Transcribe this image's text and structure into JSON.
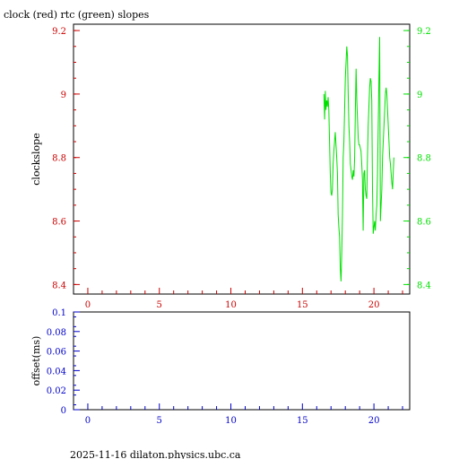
{
  "page": {
    "title": "clock (red) rtc (green) slopes",
    "footer": "2025-11-16 dilaton.physics.ubc.ca"
  },
  "colors": {
    "left_axis": "#cc0000",
    "right_axis": "#00e000",
    "green_series": "#00e000",
    "bottom_axis": "#0000cc",
    "frame": "#000000"
  },
  "chart_data": [
    {
      "type": "line",
      "title": "clock (red) rtc (green) slopes",
      "ylabel": "clockslope",
      "xlabel": "",
      "xlim": [
        -1,
        22.5
      ],
      "ylim": [
        8.37,
        9.22
      ],
      "y2lim": [
        8.37,
        9.22
      ],
      "xticks": [
        0,
        5,
        10,
        15,
        20
      ],
      "xtick_labels": [
        "0",
        "5",
        "10",
        "15",
        "20"
      ],
      "yticks": [
        8.4,
        8.6,
        8.8,
        9,
        9.2
      ],
      "ytick_labels": [
        "8.4",
        "8.6",
        "8.8",
        "9",
        "9.2"
      ],
      "y2ticks": [
        8.4,
        8.6,
        8.8,
        9,
        9.2
      ],
      "y2tick_labels": [
        "8.4",
        "8.6",
        "8.8",
        "9",
        "9.2"
      ],
      "grid": false,
      "series": [
        {
          "color": "#00e000",
          "x": [
            16.5,
            16.55,
            16.6,
            16.65,
            16.7,
            16.75,
            16.8,
            16.85,
            16.9,
            16.95,
            17.0,
            17.05,
            17.1,
            17.15,
            17.2,
            17.3,
            17.4,
            17.45,
            17.5,
            17.55,
            17.6,
            17.65,
            17.7,
            17.75,
            17.8,
            17.85,
            17.9,
            17.95,
            18.0,
            18.05,
            18.1,
            18.15,
            18.2,
            18.25,
            18.3,
            18.35,
            18.4,
            18.45,
            18.5,
            18.55,
            18.6,
            18.65,
            18.7,
            18.75,
            18.8,
            18.85,
            18.9,
            18.95,
            19.0,
            19.05,
            19.1,
            19.15,
            19.2,
            19.25,
            19.3,
            19.35,
            19.4,
            19.45,
            19.5,
            19.55,
            19.6,
            19.65,
            19.7,
            19.75,
            19.8,
            19.85,
            19.9,
            19.95,
            20.0,
            20.05,
            20.1,
            20.15,
            20.2,
            20.25,
            20.3,
            20.35,
            20.4,
            20.45,
            20.5,
            20.55,
            20.6,
            20.65,
            20.7,
            20.75,
            20.8,
            20.85,
            20.9,
            20.95,
            21.0,
            21.05,
            21.1,
            21.15,
            21.2,
            21.25,
            21.3,
            21.35,
            21.4
          ],
          "y": [
            9.0,
            8.92,
            9.01,
            8.95,
            8.98,
            8.96,
            8.99,
            8.95,
            8.85,
            8.75,
            8.69,
            8.68,
            8.7,
            8.78,
            8.82,
            8.88,
            8.8,
            8.75,
            8.62,
            8.58,
            8.55,
            8.45,
            8.41,
            8.5,
            8.62,
            8.8,
            8.85,
            8.95,
            9.05,
            9.1,
            9.15,
            9.12,
            9.0,
            8.9,
            8.85,
            8.78,
            8.76,
            8.74,
            8.73,
            8.76,
            8.74,
            8.8,
            8.95,
            9.08,
            8.98,
            8.92,
            8.86,
            8.84,
            8.84,
            8.83,
            8.82,
            8.78,
            8.73,
            8.57,
            8.75,
            8.76,
            8.7,
            8.68,
            8.67,
            8.8,
            8.9,
            8.96,
            9.02,
            9.05,
            9.04,
            8.98,
            8.7,
            8.56,
            8.58,
            8.6,
            8.57,
            8.62,
            8.65,
            8.75,
            8.9,
            9.05,
            9.18,
            8.6,
            8.65,
            8.7,
            8.8,
            8.85,
            8.9,
            8.95,
            9.0,
            9.02,
            9.0,
            8.95,
            8.9,
            8.85,
            8.8,
            8.78,
            8.75,
            8.72,
            8.7,
            8.75,
            8.8
          ]
        }
      ]
    },
    {
      "type": "line",
      "title": "",
      "ylabel": "offset(ms)",
      "xlabel": "",
      "xlim": [
        -1,
        22.5
      ],
      "ylim": [
        0,
        0.1
      ],
      "xticks": [
        0,
        5,
        10,
        15,
        20
      ],
      "xtick_labels": [
        "0",
        "5",
        "10",
        "15",
        "20"
      ],
      "yticks": [
        0,
        0.02,
        0.04,
        0.06,
        0.08,
        0.1
      ],
      "ytick_labels": [
        "0",
        "0.02",
        "0.04",
        "0.06",
        "0.08",
        "0.1"
      ],
      "grid": false,
      "series": []
    }
  ]
}
